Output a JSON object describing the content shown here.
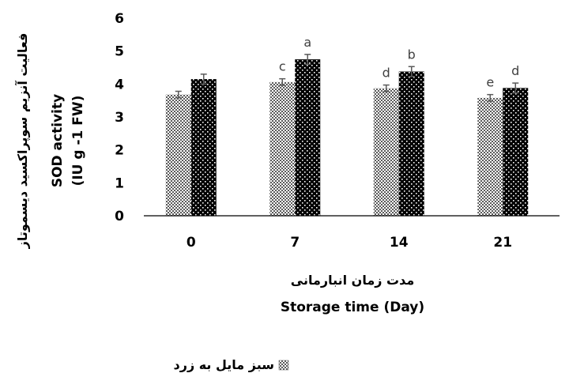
{
  "chart_data": {
    "type": "bar",
    "categories": [
      "0",
      "7",
      "14",
      "21"
    ],
    "series": [
      {
        "name": "سبز مایل به زرد",
        "values": [
          3.68,
          4.06,
          3.87,
          3.58
        ],
        "errors": [
          0.1,
          0.1,
          0.1,
          0.1
        ],
        "labels": [
          "",
          "c",
          "d",
          "e"
        ],
        "pattern": "dotted-gray"
      },
      {
        "values": [
          4.15,
          4.75,
          4.38,
          3.88
        ],
        "errors": [
          0.15,
          0.15,
          0.15,
          0.15
        ],
        "labels": [
          "",
          "a",
          "b",
          "d"
        ],
        "pattern": "dotted-black"
      }
    ],
    "ylim": [
      0,
      6
    ],
    "yticks": [
      "0",
      "1",
      "2",
      "3",
      "4",
      "5",
      "6"
    ],
    "ylabel_fa": "فعالیت آنزیم سوپراکسید دیسموتاز",
    "ylabel_en_line1": "SOD activity",
    "ylabel_en_line2": "(IU g -1 FW)",
    "xlabel_fa": "مدت زمان انبارمانی",
    "xlabel_en": "Storage time (Day)",
    "legend_position": "bottom",
    "grid": false
  }
}
